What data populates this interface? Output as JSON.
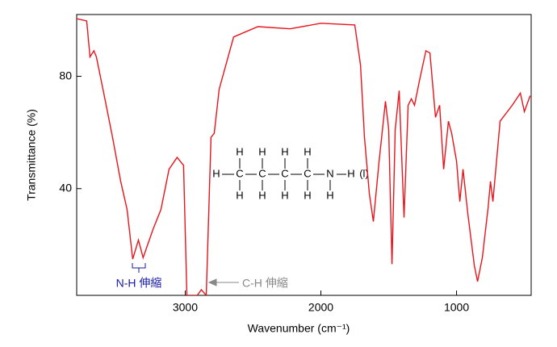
{
  "chart_data": {
    "type": "line",
    "x_label": "Wavenumber (cm⁻¹)",
    "y_label": "Transmittance (%)",
    "xlim": [
      3800,
      450
    ],
    "ylim": [
      2,
      102
    ],
    "xticks": [
      3000,
      2000,
      1000
    ],
    "yticks": [
      40,
      80
    ],
    "series": [
      {
        "name": "Transmittance",
        "color": "#e8141c",
        "x": [
          3800,
          3726,
          3702,
          3673,
          3655,
          3595,
          3536,
          3476,
          3429,
          3387,
          3345,
          3310,
          3238,
          3179,
          3119,
          3060,
          3012,
          2988,
          2911,
          2881,
          2845,
          2810,
          2786,
          2750,
          2643,
          2464,
          2226,
          2000,
          1750,
          1708,
          1679,
          1643,
          1613,
          1571,
          1524,
          1500,
          1476,
          1452,
          1423,
          1387,
          1357,
          1333,
          1310,
          1274,
          1226,
          1196,
          1155,
          1125,
          1095,
          1060,
          1036,
          1000,
          976,
          952,
          917,
          869,
          845,
          810,
          768,
          750,
          732,
          679,
          589,
          530,
          500,
          458
        ],
        "values": [
          100.5,
          99.7,
          86.9,
          89.1,
          86.9,
          72.6,
          58.3,
          42.6,
          32.6,
          14.9,
          21.7,
          15.4,
          25.4,
          32.6,
          46.9,
          51.1,
          48.3,
          2,
          2,
          4,
          2,
          58.3,
          59.7,
          75.4,
          94,
          97.7,
          96.9,
          98.9,
          98.3,
          84,
          58.3,
          38.3,
          28.3,
          49.7,
          71.1,
          61.1,
          13.1,
          61.1,
          74.9,
          29.7,
          69.7,
          72,
          69.7,
          78.3,
          89.1,
          88.3,
          65.4,
          69.7,
          46.9,
          64,
          59.7,
          49.7,
          35.4,
          46.9,
          31.1,
          12.6,
          6.9,
          15.4,
          33.1,
          42.6,
          35.4,
          64,
          69.7,
          74,
          67.4,
          73.1
        ]
      }
    ],
    "annotations": [
      {
        "text": "N-H 伸縮",
        "color": "#1a1aa6"
      },
      {
        "text": "C-H 伸縮",
        "color": "#888888"
      }
    ],
    "molecule": {
      "top": [
        "H",
        "H",
        "H",
        "H"
      ],
      "main": [
        "H",
        "C",
        "C",
        "C",
        "C",
        "N",
        "H"
      ],
      "state": "(l)",
      "bottom": [
        "H",
        "H",
        "H",
        "H",
        "H"
      ]
    }
  }
}
